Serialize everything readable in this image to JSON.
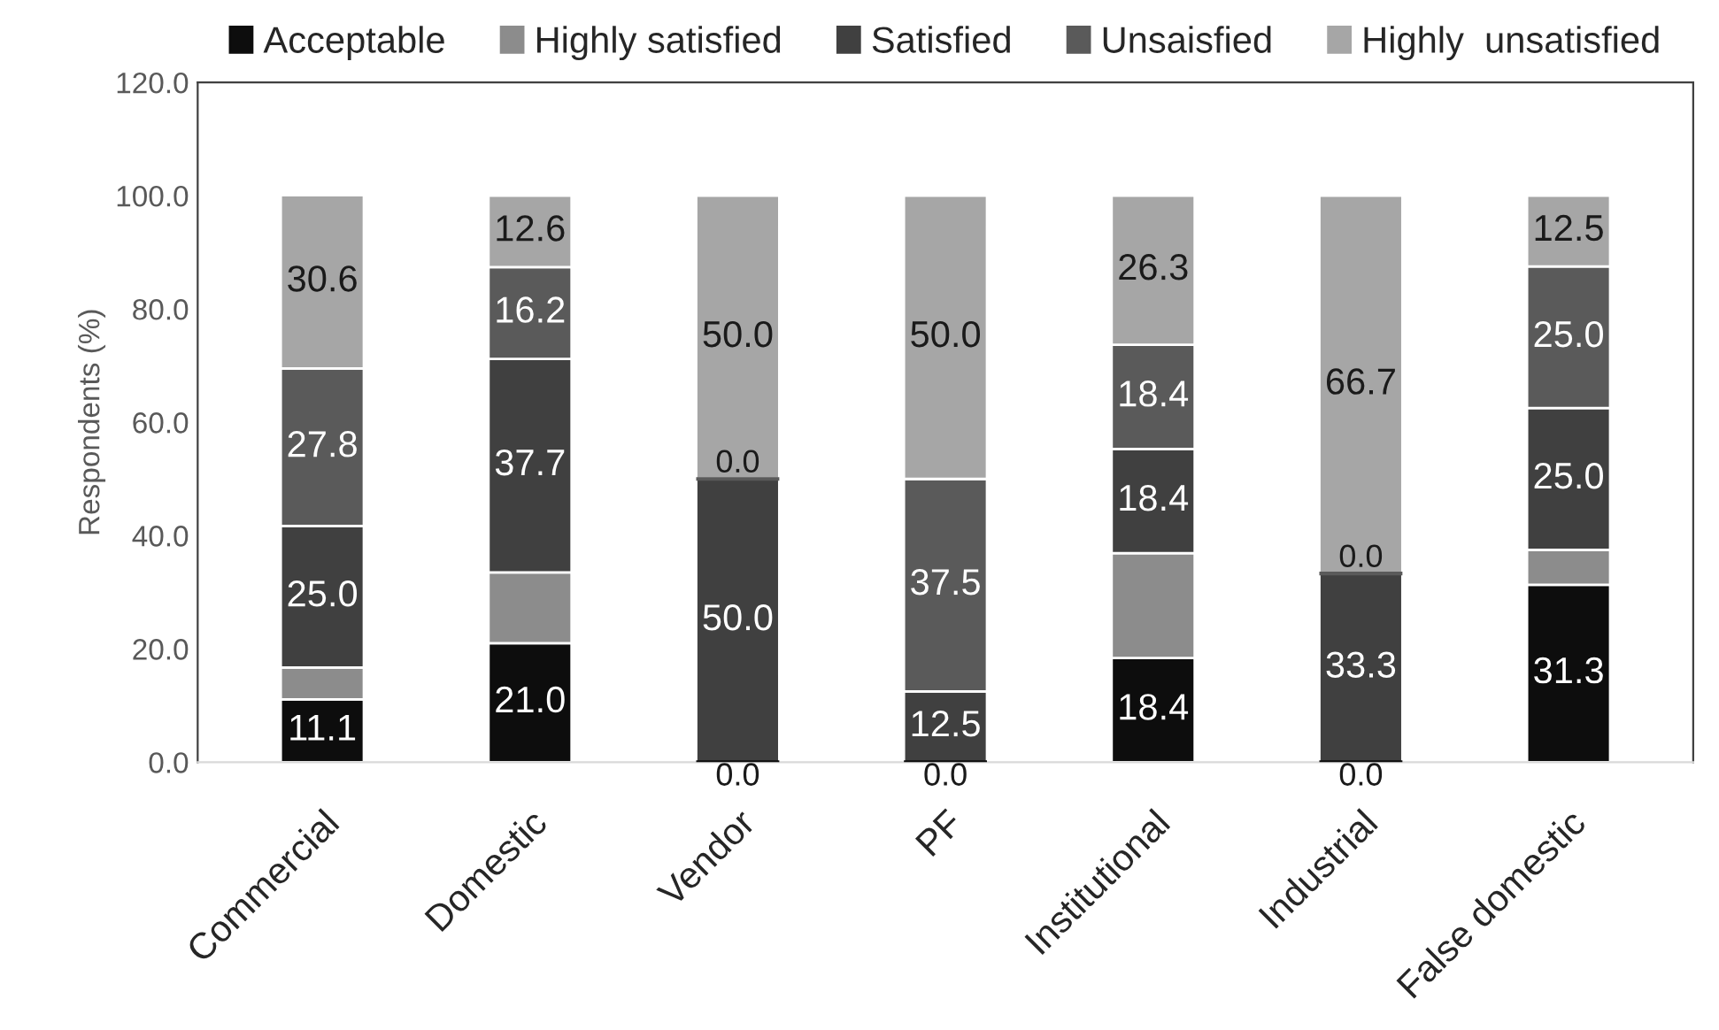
{
  "chart_data": {
    "type": "bar",
    "stacked": true,
    "ylabel": "Respondents (%)",
    "categories": [
      "Commercial",
      "Domestic",
      "Vendor",
      "PF",
      "Institutional",
      "Industrial",
      "False domestic"
    ],
    "series": [
      {
        "name": "Acceptable",
        "color": "#0d0d0d",
        "values": [
          11.1,
          21.0,
          0.0,
          0.0,
          18.4,
          0.0,
          31.3
        ],
        "value_labels": [
          "11.1",
          "21.0",
          "0.0",
          "0.0",
          "18.4",
          "0.0",
          "31.3"
        ]
      },
      {
        "name": "Highly satisfied",
        "color": "#8c8c8c",
        "values": [
          5.6,
          12.5,
          0,
          0,
          18.5,
          0,
          6.2
        ],
        "value_labels": [
          null,
          null,
          null,
          null,
          null,
          null,
          null
        ]
      },
      {
        "name": "Satisfied",
        "color": "#404040",
        "values": [
          25.0,
          37.7,
          50.0,
          12.5,
          18.4,
          33.3,
          25.0
        ],
        "value_labels": [
          "25.0",
          "37.7",
          "50.0",
          "12.5",
          "18.4",
          "33.3",
          "25.0"
        ]
      },
      {
        "name": "Unsaisfied",
        "color": "#5a5a5a",
        "values": [
          27.8,
          16.2,
          0.0,
          37.5,
          18.4,
          0.0,
          25.0
        ],
        "value_labels": [
          "27.8",
          "16.2",
          "0.0",
          "37.5",
          "18.4",
          "0.0",
          "25.0"
        ]
      },
      {
        "name": "Highly  unsatisfied",
        "color": "#a6a6a6",
        "values": [
          30.6,
          12.6,
          50.0,
          50.0,
          26.3,
          66.7,
          12.5
        ],
        "value_labels": [
          "30.6",
          "12.6",
          "50.0",
          "50.0",
          "26.3",
          "66.7",
          "12.5"
        ]
      }
    ],
    "ylim": [
      0,
      120
    ],
    "yticks": [
      {
        "value": 0,
        "label": "0.0"
      },
      {
        "value": 20,
        "label": "20.0"
      },
      {
        "value": 40,
        "label": "40.0"
      },
      {
        "value": 60,
        "label": "60.0"
      },
      {
        "value": 80,
        "label": "80.0"
      },
      {
        "value": 100,
        "label": "100.0"
      },
      {
        "value": 120,
        "label": "120.0"
      }
    ],
    "grid": false,
    "legend": "top"
  }
}
